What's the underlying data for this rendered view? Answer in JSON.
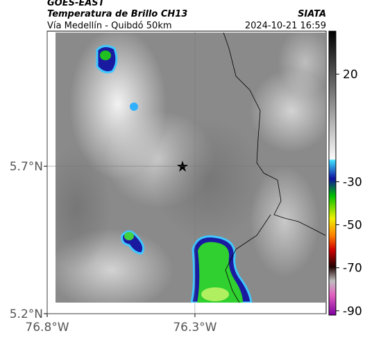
{
  "header": {
    "satellite": "GOES-EAST",
    "title": "Temperatura de Brillo CH13",
    "source": "SIATA",
    "subtitle": "Vía Medellín - Quibdó 50km",
    "timestamp": "2024-10-21 16:59"
  },
  "map": {
    "xlim": [
      -76.8,
      -75.856
    ],
    "ylim": [
      5.2,
      6.158
    ],
    "xticks": [
      {
        "value": -76.8,
        "label": "76.8°W"
      },
      {
        "value": -76.3,
        "label": "76.3°W"
      }
    ],
    "yticks": [
      {
        "value": 5.2,
        "label": "5.2°N"
      },
      {
        "value": 5.7,
        "label": "5.7°N"
      }
    ],
    "grid": true
  },
  "colorbar": {
    "clim": [
      -92,
      40
    ],
    "ticks": [
      20,
      -30,
      -50,
      -70,
      -90
    ]
  }
}
